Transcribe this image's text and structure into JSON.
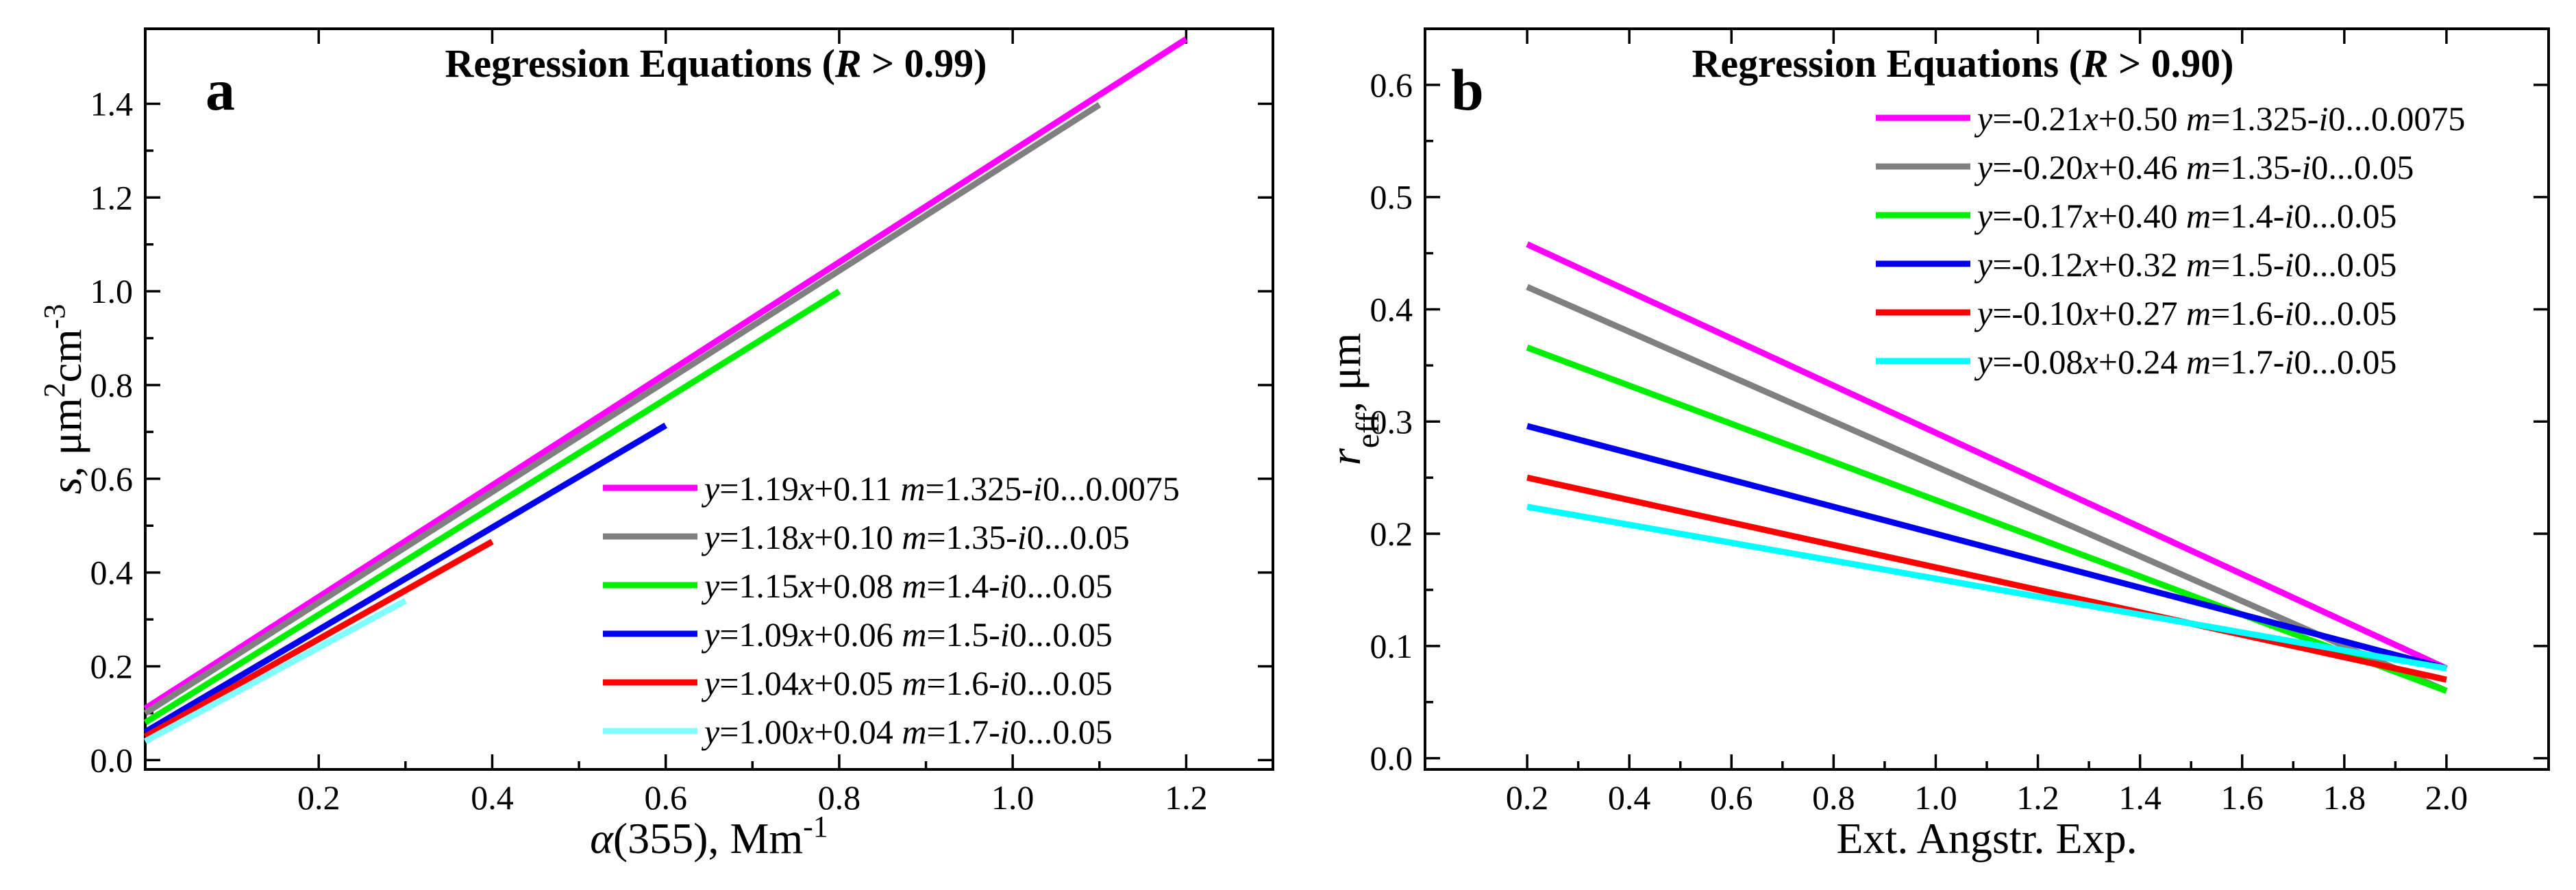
{
  "chart_data": [
    {
      "type": "line",
      "panel": "a",
      "title": "Regression Equations",
      "title_condition_symbol": "R",
      "title_condition_rest": " > 0.99)",
      "xlabel_symbol": "α",
      "xlabel_rest": "(355), Mm",
      "xlabel_sup": "-1",
      "ylabel_symbol": "s",
      "ylabel_rest": ", μm",
      "ylabel_sup1": "2",
      "ylabel_mid": "cm",
      "ylabel_sup2": "-3",
      "xlim": [
        0,
        1.3
      ],
      "ylim": [
        -0.02,
        1.56
      ],
      "xticks": [
        0.2,
        0.4,
        0.6,
        0.8,
        1.0,
        1.2
      ],
      "xtick_labels": [
        "0.2",
        "0.4",
        "0.6",
        "0.8",
        "1.0",
        "1.2"
      ],
      "yticks": [
        0.0,
        0.2,
        0.4,
        0.6,
        0.8,
        1.0,
        1.2,
        1.4
      ],
      "ytick_labels": [
        "0.0",
        "0.2",
        "0.4",
        "0.6",
        "0.8",
        "1.0",
        "1.2",
        "1.4"
      ],
      "legend_position": "bottom-right",
      "series": [
        {
          "eq": "y=1.19x+0.11",
          "slope_text": "1.19",
          "intercept_text": "0.11",
          "m_re": "1.325",
          "m_im": "0...0.0075",
          "color": "#ff00ff",
          "slope": 1.19,
          "intercept": 0.11,
          "x": [
            0.0,
            1.2
          ]
        },
        {
          "eq": "y=1.18x+0.10",
          "slope_text": "1.18",
          "intercept_text": "0.10",
          "m_re": "1.35",
          "m_im": "0...0.05",
          "color": "#808080",
          "slope": 1.18,
          "intercept": 0.1,
          "x": [
            0.0,
            1.1
          ]
        },
        {
          "eq": "y=1.15x+0.08",
          "slope_text": "1.15",
          "intercept_text": "0.08",
          "m_re": "1.4",
          "m_im": "0...0.05",
          "color": "#00ee00",
          "slope": 1.15,
          "intercept": 0.08,
          "x": [
            0.0,
            0.8
          ]
        },
        {
          "eq": "y=1.09x+0.06",
          "slope_text": "1.09",
          "intercept_text": "0.06",
          "m_re": "1.5",
          "m_im": "0...0.05",
          "color": "#0000ee",
          "slope": 1.09,
          "intercept": 0.06,
          "x": [
            0.0,
            0.6
          ]
        },
        {
          "eq": "y=1.04x+0.05",
          "slope_text": "1.04",
          "intercept_text": "0.05",
          "m_re": "1.6",
          "m_im": "0...0.05",
          "color": "#ff0000",
          "slope": 1.04,
          "intercept": 0.05,
          "x": [
            0.0,
            0.4
          ]
        },
        {
          "eq": "y=1.00x+0.04",
          "slope_text": "1.00",
          "intercept_text": "0.04",
          "m_re": "1.7",
          "m_im": "0...0.05",
          "color": "#80ffff",
          "slope": 1.0,
          "intercept": 0.04,
          "x": [
            0.0,
            0.3
          ]
        }
      ]
    },
    {
      "type": "line",
      "panel": "b",
      "title": "Regression Equations",
      "title_condition_symbol": "R",
      "title_condition_rest": " > 0.90)",
      "xlabel": "Ext. Angstr. Exp.",
      "ylabel_symbol": "r",
      "ylabel_sub": "eff",
      "ylabel_rest": ", μm",
      "xlim": [
        0,
        2.2
      ],
      "ylim": [
        -0.01,
        0.65
      ],
      "xticks": [
        0.2,
        0.4,
        0.6,
        0.8,
        1.0,
        1.2,
        1.4,
        1.6,
        1.8,
        2.0
      ],
      "xtick_labels": [
        "0.2",
        "0.4",
        "0.6",
        "0.8",
        "1.0",
        "1.2",
        "1.4",
        "1.6",
        "1.8",
        "2.0"
      ],
      "yticks": [
        0.0,
        0.1,
        0.2,
        0.3,
        0.4,
        0.5,
        0.6
      ],
      "ytick_labels": [
        "0.0",
        "0.1",
        "0.2",
        "0.3",
        "0.4",
        "0.5",
        "0.6"
      ],
      "legend_position": "top-right",
      "series": [
        {
          "eq": "y=-0.21x+0.50",
          "slope_text": "-0.21",
          "intercept_text": "0.50",
          "m_re": "1.325",
          "m_im": "0...0.0075",
          "color": "#ff00ff",
          "x": [
            0.2,
            2.0
          ],
          "y": [
            0.458,
            0.08
          ]
        },
        {
          "eq": "y=-0.20x+0.46",
          "slope_text": "-0.20",
          "intercept_text": "0.46",
          "m_re": "1.35",
          "m_im": "0...0.05",
          "color": "#808080",
          "x": [
            0.2,
            2.0
          ],
          "y": [
            0.42,
            0.06
          ]
        },
        {
          "eq": "y=-0.17x+0.40",
          "slope_text": "-0.17",
          "intercept_text": "0.40",
          "m_re": "1.4",
          "m_im": "0...0.05",
          "color": "#00ee00",
          "x": [
            0.2,
            2.0
          ],
          "y": [
            0.366,
            0.06
          ]
        },
        {
          "eq": "y=-0.12x+0.32",
          "slope_text": "-0.12",
          "intercept_text": "0.32",
          "m_re": "1.5",
          "m_im": "0...0.05",
          "color": "#0000ee",
          "x": [
            0.2,
            2.0
          ],
          "y": [
            0.296,
            0.08
          ]
        },
        {
          "eq": "y=-0.10x+0.27",
          "slope_text": "-0.10",
          "intercept_text": "0.27",
          "m_re": "1.6",
          "m_im": "0...0.05",
          "color": "#ff0000",
          "x": [
            0.2,
            2.0
          ],
          "y": [
            0.25,
            0.07
          ]
        },
        {
          "eq": "y=-0.08x+0.24",
          "slope_text": "-0.08",
          "intercept_text": "0.24",
          "m_re": "1.7",
          "m_im": "0...0.05",
          "color": "#00ffff",
          "x": [
            0.2,
            2.0
          ],
          "y": [
            0.224,
            0.08
          ]
        }
      ]
    }
  ]
}
